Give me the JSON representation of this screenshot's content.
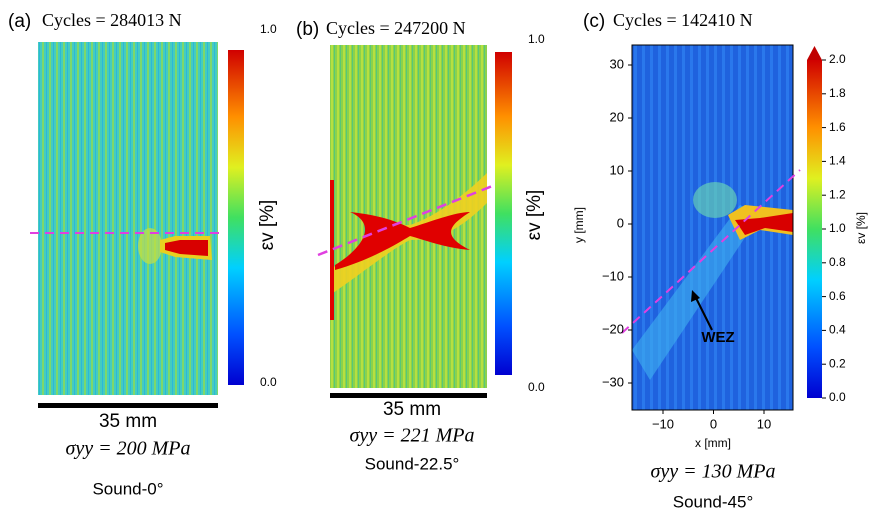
{
  "panels": [
    {
      "label": "(a)",
      "cycles": "Cycles = 284013 N",
      "colorbar_max": "1.0",
      "colorbar_min": "0.0",
      "colorbar_label": "εv [%]",
      "scale_bar": "35 mm",
      "stress": "σyy = 200 MPa",
      "specimen": "Sound-0°"
    },
    {
      "label": "(b)",
      "cycles": "Cycles = 247200 N",
      "colorbar_max": "1.0",
      "colorbar_min": "0.0",
      "colorbar_label": "εv [%]",
      "scale_bar": "35 mm",
      "stress": "σyy = 221 MPa",
      "specimen": "Sound-22.5°"
    },
    {
      "label": "(c)",
      "cycles": "Cycles = 142410 N",
      "colorbar_label": "εv [%]",
      "stress": "σyy = 130 MPa",
      "specimen": "Sound-45°",
      "x_label": "x [mm]",
      "y_label": "y [mm]",
      "annotation": "WEZ",
      "xticks": [
        "−10",
        "0",
        "10"
      ],
      "yticks": [
        "30",
        "20",
        "10",
        "0",
        "−10",
        "−20",
        "−30"
      ],
      "colorbar_ticks": [
        "0.0",
        "0.2",
        "0.4",
        "0.6",
        "0.8",
        "1.0",
        "1.2",
        "1.4",
        "1.6",
        "1.8",
        "2.0"
      ]
    }
  ]
}
